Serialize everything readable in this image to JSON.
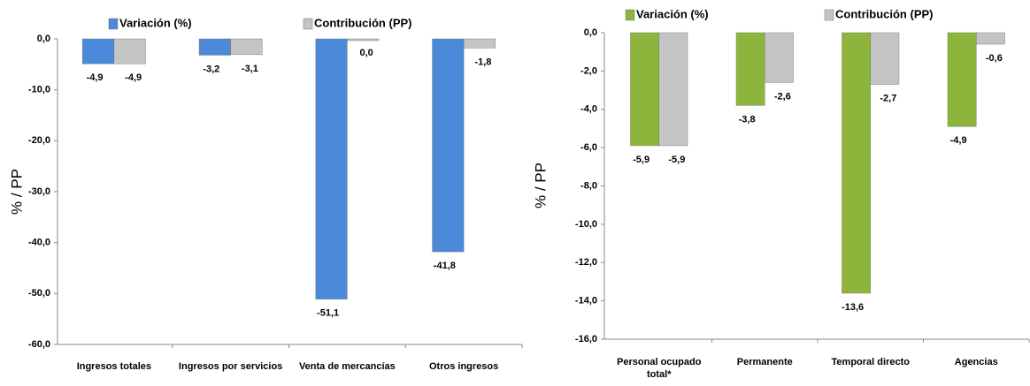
{
  "chart_data": [
    {
      "type": "bar",
      "y_label": "% / PP",
      "categories": [
        "Ingresos totales",
        "Ingresos por servicios",
        "Venta de mercancías",
        "Otros ingresos"
      ],
      "series": [
        {
          "name": "Variación (%)",
          "color": "#4a8ad8",
          "values": [
            -4.9,
            -3.2,
            -51.1,
            -41.8
          ],
          "value_labels": [
            "-4,9",
            "-3,2",
            "-51,1",
            "-41,8"
          ]
        },
        {
          "name": "Contribución (PP)",
          "color": "#c4c4c4",
          "values": [
            -4.9,
            -3.1,
            0.0,
            -1.8
          ],
          "value_labels": [
            "-4,9",
            "-3,1",
            "0,0",
            "-1,8"
          ]
        }
      ],
      "ylim": [
        -60,
        0
      ],
      "yticks": [
        {
          "value": 0,
          "label": "0,0"
        },
        {
          "value": -10,
          "label": "-10,0"
        },
        {
          "value": -20,
          "label": "-20,0"
        },
        {
          "value": -30,
          "label": "-30,0"
        },
        {
          "value": -40,
          "label": "-40,0"
        },
        {
          "value": -50,
          "label": "-50,0"
        },
        {
          "value": -60,
          "label": "-60,0"
        }
      ],
      "legend": "top"
    },
    {
      "type": "bar",
      "y_label": "% / PP",
      "categories": [
        "Personal ocupado total*",
        "Permanente",
        "Temporal directo",
        "Agencias"
      ],
      "series": [
        {
          "name": "Variación (%)",
          "color": "#8db53c",
          "values": [
            -5.9,
            -3.8,
            -13.6,
            -4.9
          ],
          "value_labels": [
            "-5,9",
            "-3,8",
            "-13,6",
            "-4,9"
          ]
        },
        {
          "name": "Contribución (PP)",
          "color": "#c4c4c4",
          "values": [
            -5.9,
            -2.6,
            -2.7,
            -0.6
          ],
          "value_labels": [
            "-5,9",
            "-2,6",
            "-2,7",
            "-0,6"
          ]
        }
      ],
      "ylim": [
        -16,
        0
      ],
      "yticks": [
        {
          "value": 0,
          "label": "0,0"
        },
        {
          "value": -2,
          "label": "-2,0"
        },
        {
          "value": -4,
          "label": "-4,0"
        },
        {
          "value": -6,
          "label": "-6,0"
        },
        {
          "value": -8,
          "label": "-8,0"
        },
        {
          "value": -10,
          "label": "-10,0"
        },
        {
          "value": -12,
          "label": "-12,0"
        },
        {
          "value": -14,
          "label": "-14,0"
        },
        {
          "value": -16,
          "label": "-16,0"
        }
      ],
      "legend": "top"
    }
  ]
}
